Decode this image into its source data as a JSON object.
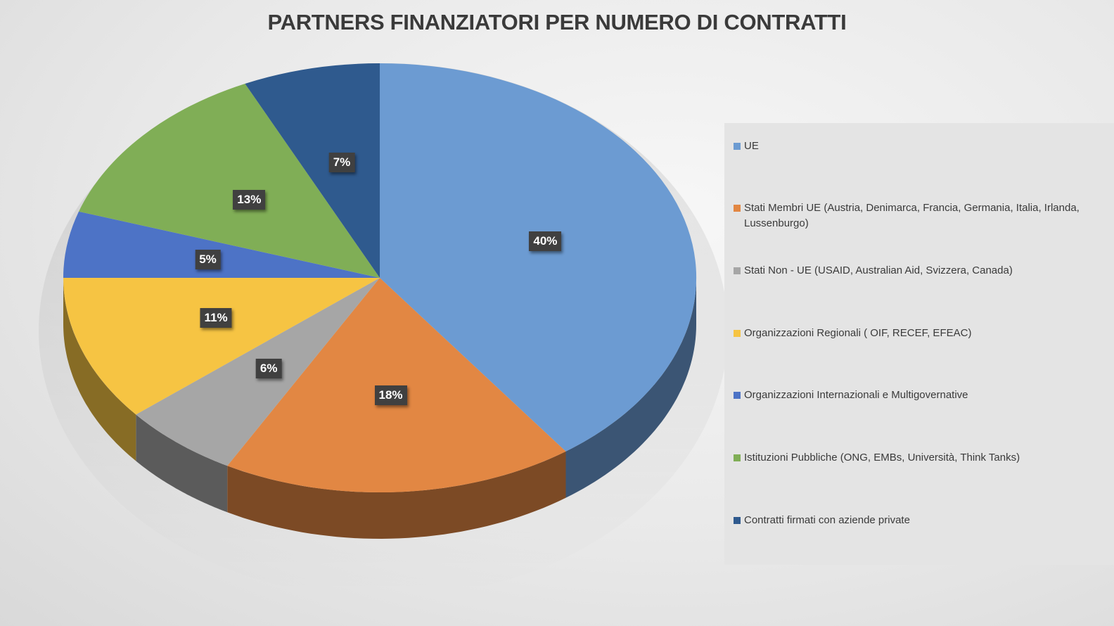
{
  "chart_data": {
    "type": "pie",
    "title": "PARTNERS FINANZIATORI PER NUMERO DI CONTRATTI",
    "categories": [
      "UE",
      "Stati Membri UE (Austria, Denimarca, Francia, Germania, Italia, Irlanda, Lussenburgo)",
      "Stati Non - UE  (USAID, Australian Aid, Svizzera, Canada)",
      "Organizzazioni Regionali  ( OIF, RECEF, EFEAC)",
      "Organizzazioni Internazionali e Multigovernative",
      "Istituzioni Pubbliche  (ONG, EMBs, Università, Think Tanks)",
      "Contratti firmati con aziende private"
    ],
    "values": [
      40,
      18,
      6,
      11,
      5,
      13,
      7
    ],
    "labels": [
      "40%",
      "18%",
      "6%",
      "11%",
      "5%",
      "13%",
      "7%"
    ],
    "colors": [
      "#6c9bd2",
      "#e28743",
      "#a6a6a6",
      "#f6c443",
      "#4d73c6",
      "#80ae56",
      "#2f5a8e"
    ],
    "legend_position": "right",
    "style": "3d"
  }
}
